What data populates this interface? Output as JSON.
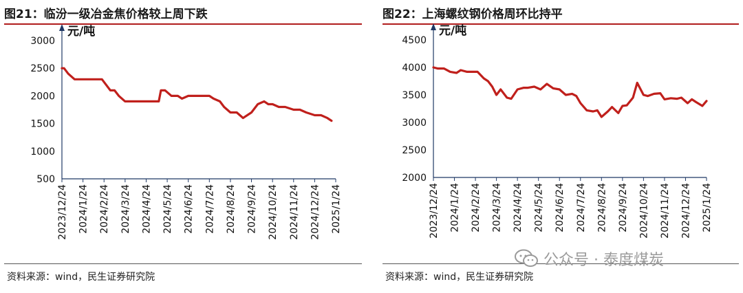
{
  "panels": [
    {
      "title": "图21：临汾一级冶金焦价格较上周下跌",
      "source": "资料来源：wind，民生证券研究院"
    },
    {
      "title": "图22：上海螺纹钢价格周环比持平",
      "source": "资料来源：wind，民生证券研究院"
    }
  ],
  "watermark": {
    "text": "公众号 · 泰度煤炭",
    "icon": "wechat-icon"
  },
  "colors": {
    "line": "#c0201c",
    "axis": "#1f3864",
    "title_rule": "#b01c1c"
  },
  "chart_data": [
    {
      "type": "line",
      "title": "图21：临汾一级冶金焦价格较上周下跌",
      "unit_label": "元/吨",
      "ylim": [
        500,
        3000
      ],
      "yticks": [
        500,
        1000,
        1500,
        2000,
        2500,
        3000
      ],
      "xlim": [
        0,
        13
      ],
      "x_tick_labels": [
        "2023/12/24",
        "2024/1/24",
        "2024/2/24",
        "2024/3/24",
        "2024/4/24",
        "2024/5/24",
        "2024/6/24",
        "2024/7/24",
        "2024/8/24",
        "2024/9/24",
        "2024/10/24",
        "2024/11/24",
        "2024/12/24",
        "2025/1/24"
      ],
      "grid": false,
      "legend": "none",
      "series": [
        {
          "x": [
            0,
            0.1,
            0.3,
            0.6,
            1,
            1.5,
            1.9,
            2.3,
            2.5,
            2.7,
            3,
            3.3,
            3.6,
            4,
            4.3,
            4.6,
            4.7,
            4.9,
            5.2,
            5.5,
            5.7,
            6,
            6.3,
            6.7,
            7,
            7.2,
            7.5,
            7.7,
            8,
            8.3,
            8.6,
            9,
            9.3,
            9.6,
            9.8,
            10,
            10.3,
            10.6,
            11,
            11.3,
            11.6,
            12,
            12.3,
            12.6,
            12.8
          ],
          "y": [
            2500,
            2500,
            2400,
            2300,
            2300,
            2300,
            2300,
            2100,
            2100,
            2000,
            1900,
            1900,
            1900,
            1900,
            1900,
            1900,
            2100,
            2100,
            2000,
            2000,
            1950,
            2000,
            2000,
            2000,
            2000,
            1950,
            1900,
            1800,
            1700,
            1700,
            1600,
            1700,
            1850,
            1900,
            1850,
            1850,
            1800,
            1800,
            1750,
            1750,
            1700,
            1650,
            1650,
            1600,
            1550
          ]
        }
      ]
    },
    {
      "type": "line",
      "title": "图22：上海螺纹钢价格周环比持平",
      "unit_label": "元/吨",
      "ylim": [
        2000,
        4500
      ],
      "yticks": [
        2000,
        2500,
        3000,
        3500,
        4000,
        4500
      ],
      "xlim": [
        0,
        13
      ],
      "x_tick_labels": [
        "2023/12/24",
        "2024/1/24",
        "2024/2/24",
        "2024/3/24",
        "2024/4/24",
        "2024/5/24",
        "2024/6/24",
        "2024/7/24",
        "2024/8/24",
        "2024/9/24",
        "2024/10/24",
        "2024/11/24",
        "2024/12/24",
        "2025/1/24"
      ],
      "grid": false,
      "legend": "none",
      "series": [
        {
          "x": [
            0,
            0.2,
            0.5,
            0.8,
            1.1,
            1.3,
            1.6,
            1.9,
            2.1,
            2.4,
            2.6,
            2.8,
            3,
            3.2,
            3.5,
            3.7,
            4,
            4.3,
            4.5,
            4.8,
            5.1,
            5.4,
            5.7,
            6,
            6.3,
            6.6,
            6.8,
            7,
            7.3,
            7.6,
            7.8,
            8,
            8.3,
            8.5,
            8.8,
            9,
            9.2,
            9.5,
            9.7,
            10,
            10.2,
            10.5,
            10.8,
            11,
            11.3,
            11.6,
            11.8,
            12.1,
            12.3,
            12.5,
            12.8,
            13
          ],
          "y": [
            4000,
            3980,
            3980,
            3920,
            3900,
            3950,
            3920,
            3920,
            3920,
            3800,
            3750,
            3650,
            3500,
            3600,
            3450,
            3430,
            3600,
            3630,
            3630,
            3650,
            3600,
            3700,
            3620,
            3600,
            3500,
            3520,
            3480,
            3350,
            3220,
            3200,
            3220,
            3100,
            3200,
            3280,
            3170,
            3300,
            3310,
            3450,
            3720,
            3500,
            3480,
            3520,
            3530,
            3420,
            3440,
            3430,
            3450,
            3350,
            3420,
            3370,
            3300,
            3390
          ]
        }
      ]
    }
  ]
}
